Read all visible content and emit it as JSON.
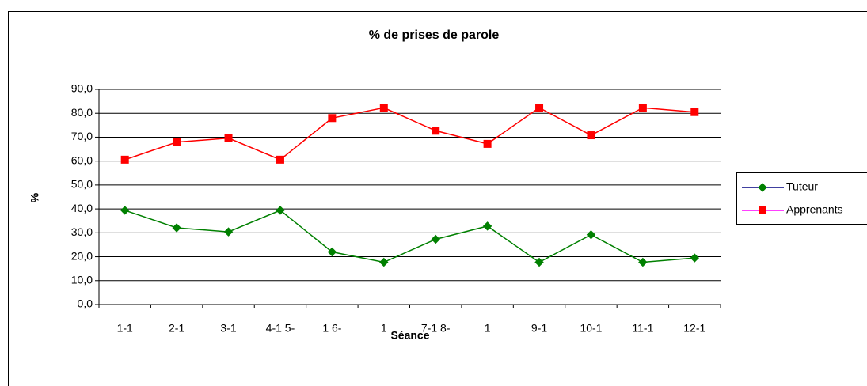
{
  "chart_data": {
    "type": "line",
    "title": "% de prises de parole",
    "xlabel": "Séance",
    "ylabel": "%",
    "categories": [
      "1-1",
      "2-1",
      "3-1",
      "4-1 5-",
      "1 6-",
      "1",
      "7-1 8-",
      "1",
      "9-1",
      "10-1",
      "11-1",
      "12-1"
    ],
    "series": [
      {
        "name": "Tuteur",
        "color": "#008000",
        "legend_line_color": "#000080",
        "marker": "diamond",
        "values": [
          39.4,
          32.1,
          30.4,
          39.4,
          22.0,
          17.7,
          27.3,
          32.8,
          17.7,
          29.2,
          17.7,
          19.5
        ]
      },
      {
        "name": "Apprenants",
        "color": "#ff0000",
        "legend_line_color": "#ff00ff",
        "marker": "square",
        "values": [
          60.6,
          67.9,
          69.6,
          60.6,
          78.0,
          82.3,
          72.7,
          67.2,
          82.3,
          70.8,
          82.3,
          80.5
        ]
      }
    ],
    "ylim": [
      0,
      90
    ],
    "yticks": [
      {
        "value": 0,
        "label": "0,0"
      },
      {
        "value": 10,
        "label": "10,0"
      },
      {
        "value": 20,
        "label": "20,0"
      },
      {
        "value": 30,
        "label": "30,0"
      },
      {
        "value": 40,
        "label": "40,0"
      },
      {
        "value": 50,
        "label": "50,0"
      },
      {
        "value": 60,
        "label": "60,0"
      },
      {
        "value": 70,
        "label": "70,0"
      },
      {
        "value": 80,
        "label": "80,0"
      },
      {
        "value": 90,
        "label": "90,0"
      }
    ],
    "grid": true,
    "legend": "right"
  }
}
